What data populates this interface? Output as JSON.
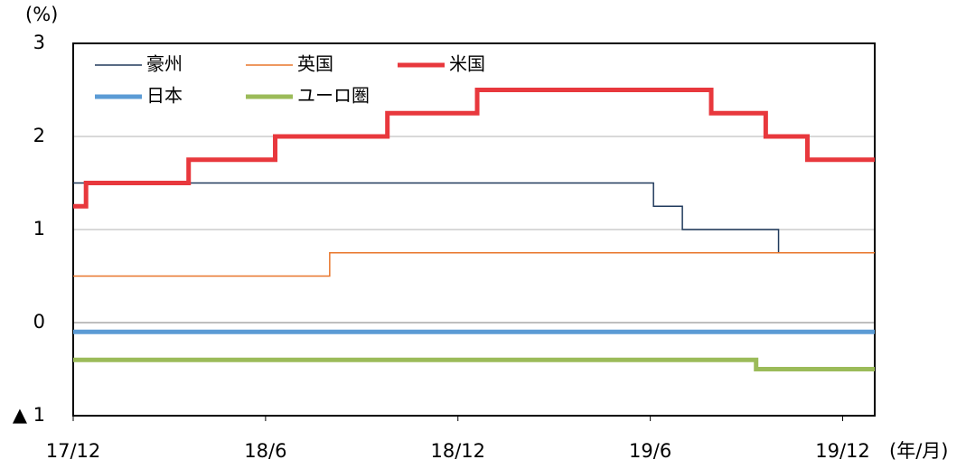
{
  "chart_data": {
    "type": "line",
    "step": true,
    "y_unit_label": "(%)",
    "x_unit_label": "(年/月)",
    "xlim": [
      0,
      25
    ],
    "xticks": [
      {
        "value": 0,
        "label": "17/12"
      },
      {
        "value": 6,
        "label": "18/6"
      },
      {
        "value": 12,
        "label": "18/12"
      },
      {
        "value": 18,
        "label": "19/6"
      },
      {
        "value": 24,
        "label": "19/12"
      }
    ],
    "ylim": [
      -1,
      3
    ],
    "yticks": [
      {
        "value": -1,
        "label": "▲ 1"
      },
      0,
      1,
      2,
      3
    ],
    "grid": true,
    "series": [
      {
        "name": "豪州",
        "color": "#203a5c",
        "width": 1.5,
        "x": [
          0,
          18.1,
          18.1,
          19.0,
          19.0,
          22.0,
          22.0,
          25
        ],
        "values": [
          1.5,
          1.5,
          1.25,
          1.25,
          1.0,
          1.0,
          0.75,
          0.75
        ]
      },
      {
        "name": "英国",
        "color": "#e8762b",
        "width": 1.5,
        "x": [
          0,
          8.0,
          8.0,
          25
        ],
        "values": [
          0.5,
          0.5,
          0.75,
          0.75
        ]
      },
      {
        "name": "米国",
        "color": "#e8383d",
        "width": 5,
        "x": [
          0,
          0.4,
          0.4,
          3.6,
          3.6,
          6.3,
          6.3,
          9.8,
          9.8,
          12.6,
          12.6,
          19.9,
          19.9,
          21.6,
          21.6,
          22.9,
          22.9,
          25
        ],
        "values": [
          1.25,
          1.25,
          1.5,
          1.5,
          1.75,
          1.75,
          2.0,
          2.0,
          2.25,
          2.25,
          2.5,
          2.5,
          2.25,
          2.25,
          2.0,
          2.0,
          1.75,
          1.75
        ]
      },
      {
        "name": "日本",
        "color": "#5b9bd5",
        "width": 5,
        "x": [
          0,
          25
        ],
        "values": [
          -0.1,
          -0.1
        ]
      },
      {
        "name": "ユーロ圏",
        "color": "#9bbb59",
        "width": 5,
        "x": [
          0,
          21.3,
          21.3,
          25
        ],
        "values": [
          -0.4,
          -0.4,
          -0.5,
          -0.5
        ]
      }
    ]
  }
}
